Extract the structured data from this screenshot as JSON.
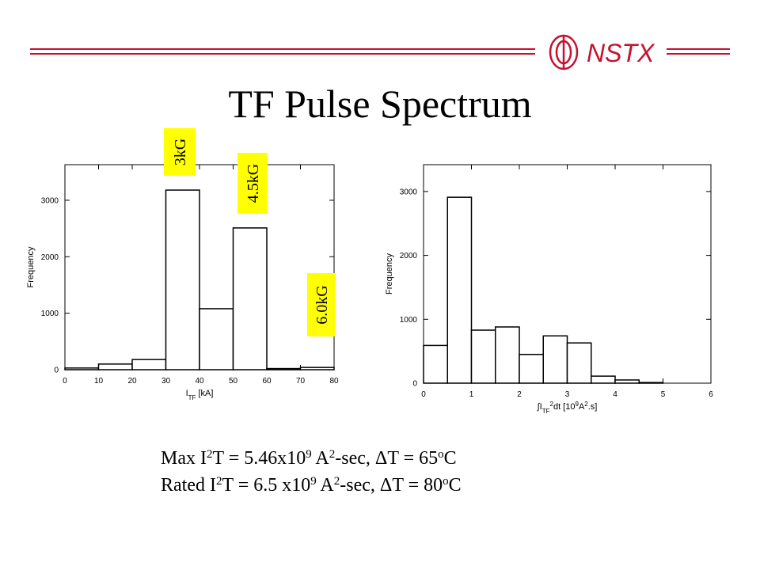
{
  "logo": "NSTX",
  "title": "TF Pulse Spectrum",
  "notes": [
    [
      {
        "text": "Max I"
      },
      {
        "text": "2",
        "pos": "sup"
      },
      {
        "text": "T = 5.46x10"
      },
      {
        "text": "9",
        "pos": "sup"
      },
      {
        "text": " A"
      },
      {
        "text": "2",
        "pos": "sup"
      },
      {
        "text": "-sec, ΔT = 65"
      },
      {
        "text": "o",
        "pos": "sup"
      },
      {
        "text": "C"
      }
    ],
    [
      {
        "text": "Rated I"
      },
      {
        "text": "2",
        "pos": "sup"
      },
      {
        "text": "T = 6.5 x10"
      },
      {
        "text": "9",
        "pos": "sup"
      },
      {
        "text": " A"
      },
      {
        "text": "2",
        "pos": "sup"
      },
      {
        "text": "-sec, ΔT = 80"
      },
      {
        "text": "o",
        "pos": "sup"
      },
      {
        "text": "C"
      }
    ]
  ],
  "chart_data": [
    {
      "type": "histogram",
      "bins": [
        0,
        10,
        20,
        30,
        40,
        50,
        60,
        70,
        80
      ],
      "values": [
        30,
        100,
        180,
        3180,
        1080,
        2510,
        20,
        40
      ],
      "xlim": [
        0,
        80
      ],
      "xticks": [
        0,
        10,
        20,
        30,
        40,
        50,
        60,
        70,
        80
      ],
      "ylim": [
        0,
        3630
      ],
      "yticks": [
        0,
        1000,
        2000,
        3000
      ],
      "ylabel": "Frequency",
      "xlabel": [
        {
          "text": "I"
        },
        {
          "text": "TF",
          "pos": "sub"
        },
        {
          "text": " [kA]"
        }
      ],
      "annotations": [
        "3kG",
        "4.5kG",
        "6.0kG"
      ],
      "color": "#ffffff"
    },
    {
      "type": "histogram",
      "bins": [
        0,
        0.5,
        1,
        1.5,
        2,
        2.5,
        3,
        3.5,
        4,
        4.5,
        5
      ],
      "values": [
        590,
        2910,
        830,
        880,
        450,
        740,
        630,
        110,
        50,
        10
      ],
      "xlim": [
        0,
        6
      ],
      "xticks": [
        0,
        1,
        2,
        3,
        4,
        5,
        6
      ],
      "ylim": [
        0,
        3420
      ],
      "yticks": [
        0,
        1000,
        2000,
        3000
      ],
      "ylabel": "Frequency",
      "xlabel": [
        {
          "text": "∫I"
        },
        {
          "text": "TF",
          "pos": "sub"
        },
        {
          "text": "2",
          "pos": "sup"
        },
        {
          "text": "dt [10"
        },
        {
          "text": "9",
          "pos": "sup"
        },
        {
          "text": "A"
        },
        {
          "text": "2",
          "pos": "sup"
        },
        {
          "text": ".s]"
        }
      ],
      "color": "#ffffff"
    }
  ]
}
